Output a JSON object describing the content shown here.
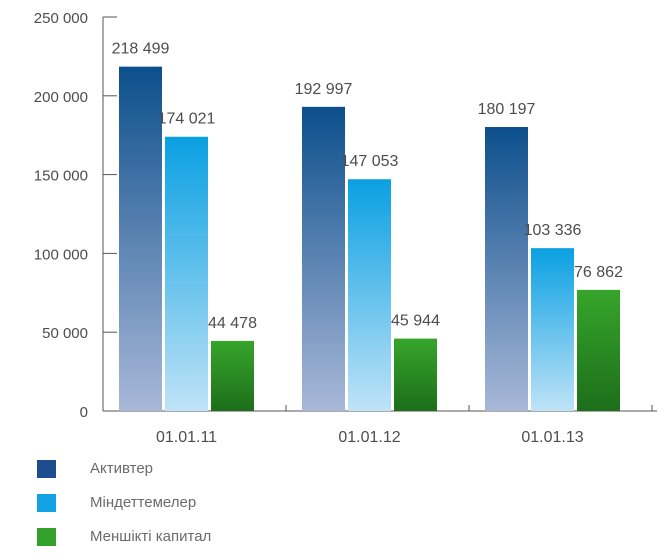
{
  "chart_data": {
    "type": "bar",
    "categories": [
      "01.01.11",
      "01.01.12",
      "01.01.13"
    ],
    "series": [
      {
        "name": "Активтер",
        "values": [
          218499,
          192997,
          180197
        ],
        "labels": [
          "218 499",
          "192 997",
          "180 197"
        ],
        "color_top": "#0c4f8c",
        "color_bottom": "#a9b8d8"
      },
      {
        "name": "Міндеттемелер",
        "values": [
          174021,
          147053,
          103336
        ],
        "labels": [
          "174 021",
          "147 053",
          "103 336"
        ],
        "color_top": "#0aa0e2",
        "color_bottom": "#bfe3f7"
      },
      {
        "name": "Меншікті капитал",
        "values": [
          44478,
          45944,
          76862
        ],
        "labels": [
          "44 478",
          "45 944",
          "76 862"
        ],
        "color_top": "#36a52b",
        "color_bottom": "#1d6e1a"
      }
    ],
    "y_ticks": [
      0,
      50000,
      100000,
      150000,
      200000,
      250000
    ],
    "y_tick_labels": [
      "0",
      "50 000",
      "100 000",
      "150 000",
      "200 000",
      "250 000"
    ],
    "ylim": [
      0,
      250000
    ],
    "legend_position": "bottom-left",
    "grid": false
  },
  "legend": {
    "items": [
      {
        "label": "Активтер",
        "color": "#1e4d8f"
      },
      {
        "label": "Міндеттемелер",
        "color": "#12a2e4"
      },
      {
        "label": "Меншікті капитал",
        "color": "#34a02c"
      }
    ]
  }
}
